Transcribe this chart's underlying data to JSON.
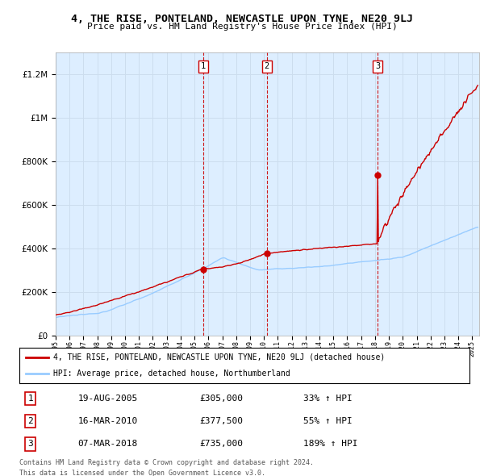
{
  "title": "4, THE RISE, PONTELAND, NEWCASTLE UPON TYNE, NE20 9LJ",
  "subtitle": "Price paid vs. HM Land Registry's House Price Index (HPI)",
  "legend_property": "4, THE RISE, PONTELAND, NEWCASTLE UPON TYNE, NE20 9LJ (detached house)",
  "legend_hpi": "HPI: Average price, detached house, Northumberland",
  "footer1": "Contains HM Land Registry data © Crown copyright and database right 2024.",
  "footer2": "This data is licensed under the Open Government Licence v3.0.",
  "transactions": [
    {
      "num": 1,
      "date": "19-AUG-2005",
      "price": 305000,
      "pct": "33%",
      "x_year": 2005.63
    },
    {
      "num": 2,
      "date": "16-MAR-2010",
      "price": 377500,
      "pct": "55%",
      "x_year": 2010.21
    },
    {
      "num": 3,
      "date": "07-MAR-2018",
      "price": 735000,
      "pct": "189%",
      "x_year": 2018.18
    }
  ],
  "ylim": [
    0,
    1300000
  ],
  "xlim_start": 1995,
  "xlim_end": 2025.5,
  "property_color": "#cc0000",
  "hpi_color": "#99ccff",
  "vline_color": "#cc0000",
  "chart_bg": "#ddeeff",
  "background_color": "#ffffff",
  "grid_color": "#ccddee"
}
